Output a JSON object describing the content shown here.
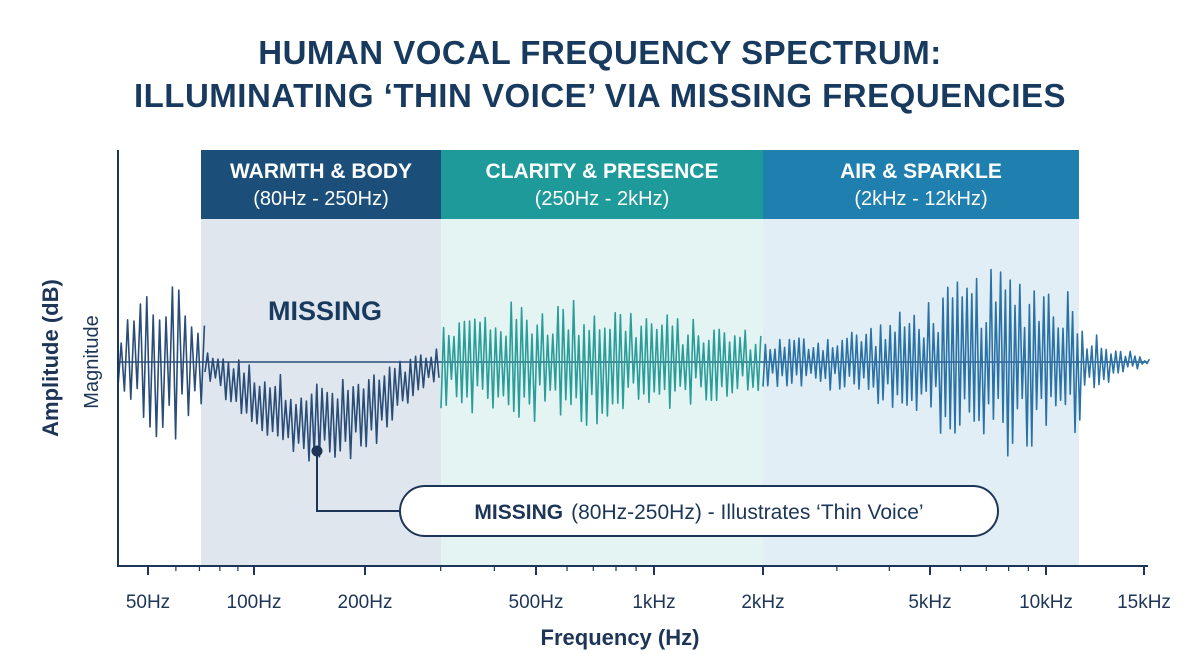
{
  "title": {
    "line1": "HUMAN VOCAL FREQUENCY SPECTRUM:",
    "line2": "ILLUMINATING ‘THIN VOICE’ VIA MISSING FREQUENCIES"
  },
  "bands": [
    {
      "name": "WARMTH & BODY",
      "range": "(80Hz - 250Hz)",
      "from_hz": 80,
      "to_hz": 250,
      "color": "#1b4f7a",
      "fill": "#dfe6ee"
    },
    {
      "name": "CLARITY & PRESENCE",
      "range": "(250Hz - 2kHz)",
      "from_hz": 250,
      "to_hz": 2000,
      "color": "#1f9a9a",
      "fill": "#e3f4f2"
    },
    {
      "name": "AIR & SPARKLE",
      "range": "(2kHz - 12kHz)",
      "from_hz": 2000,
      "to_hz": 12000,
      "color": "#1f7fae",
      "fill": "#e1eef6"
    }
  ],
  "missing_label": "MISSING",
  "callout": {
    "bold": "MISSING",
    "rest": "(80Hz-250Hz) - Illustrates ‘Thin Voice’",
    "point_hz": 150
  },
  "axes": {
    "y_label": "Amplitude (dB)",
    "y_sublabel": "Magnitude",
    "x_label": "Frequency (Hz)",
    "x_scale": "log",
    "x_range_hz": [
      40,
      15000
    ]
  },
  "x_ticks": [
    {
      "hz": 50,
      "label": "50Hz"
    },
    {
      "hz": 100,
      "label": "100Hz"
    },
    {
      "hz": 200,
      "label": "200Hz"
    },
    {
      "hz": 500,
      "label": "500Hz"
    },
    {
      "hz": 1000,
      "label": "1kHz"
    },
    {
      "hz": 2000,
      "label": "2kHz"
    },
    {
      "hz": 5000,
      "label": "5kHz"
    },
    {
      "hz": 10000,
      "label": "10kHz"
    },
    {
      "hz": 15000,
      "label": "15kHz"
    }
  ],
  "colors": {
    "waveform_low": "#2a4d78",
    "waveform_mid": "#2a9d9a",
    "waveform_high": "#2a72a6",
    "axis": "#1d3557"
  }
}
